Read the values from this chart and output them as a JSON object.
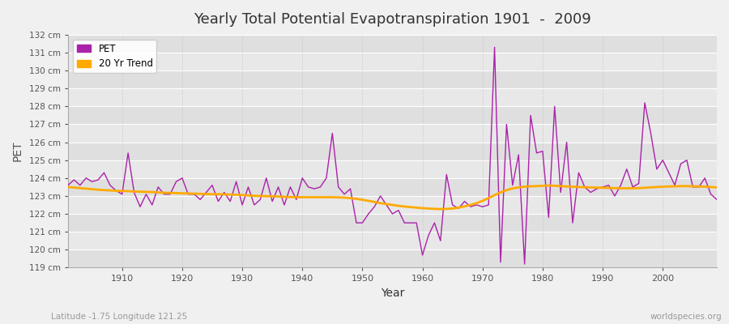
{
  "title": "Yearly Total Potential Evapotranspiration 1901  -  2009",
  "xlabel": "Year",
  "ylabel": "PET",
  "subtitle": "Latitude -1.75 Longitude 121.25",
  "watermark": "worldspecies.org",
  "pet_color": "#aa22aa",
  "trend_color": "#ffaa00",
  "background_color": "#f0f0f0",
  "plot_bg_color": "#e8e8e8",
  "ylim": [
    119,
    132
  ],
  "xlim": [
    1901,
    2009
  ],
  "yticks": [
    119,
    120,
    121,
    122,
    123,
    124,
    125,
    126,
    127,
    128,
    129,
    130,
    131,
    132
  ],
  "xticks": [
    1910,
    1920,
    1930,
    1940,
    1950,
    1960,
    1970,
    1980,
    1990,
    2000
  ],
  "years": [
    1901,
    1902,
    1903,
    1904,
    1905,
    1906,
    1907,
    1908,
    1909,
    1910,
    1911,
    1912,
    1913,
    1914,
    1915,
    1916,
    1917,
    1918,
    1919,
    1920,
    1921,
    1922,
    1923,
    1924,
    1925,
    1926,
    1927,
    1928,
    1929,
    1930,
    1931,
    1932,
    1933,
    1934,
    1935,
    1936,
    1937,
    1938,
    1939,
    1940,
    1941,
    1942,
    1943,
    1944,
    1945,
    1946,
    1947,
    1948,
    1949,
    1950,
    1951,
    1952,
    1953,
    1954,
    1955,
    1956,
    1957,
    1958,
    1959,
    1960,
    1961,
    1962,
    1963,
    1964,
    1965,
    1966,
    1967,
    1968,
    1969,
    1970,
    1971,
    1972,
    1973,
    1974,
    1975,
    1976,
    1977,
    1978,
    1979,
    1980,
    1981,
    1982,
    1983,
    1984,
    1985,
    1986,
    1987,
    1988,
    1989,
    1990,
    1991,
    1992,
    1993,
    1994,
    1995,
    1996,
    1997,
    1998,
    1999,
    2000,
    2001,
    2002,
    2003,
    2004,
    2005,
    2006,
    2007,
    2008,
    2009
  ],
  "pet_values": [
    123.6,
    123.9,
    123.6,
    124.0,
    123.8,
    123.9,
    124.3,
    123.6,
    123.3,
    123.1,
    125.4,
    123.2,
    122.4,
    123.1,
    122.5,
    123.5,
    123.1,
    123.1,
    123.8,
    124.0,
    123.1,
    123.1,
    122.8,
    123.2,
    123.6,
    122.7,
    123.2,
    122.7,
    123.8,
    122.5,
    123.5,
    122.5,
    122.8,
    124.0,
    122.7,
    123.5,
    122.5,
    123.5,
    122.8,
    124.0,
    123.5,
    123.4,
    123.5,
    124.0,
    126.5,
    123.5,
    123.1,
    123.4,
    121.5,
    121.5,
    122.0,
    122.4,
    123.0,
    122.5,
    122.0,
    122.2,
    121.5,
    121.5,
    121.5,
    119.7,
    120.8,
    121.5,
    120.5,
    124.2,
    122.5,
    122.3,
    122.7,
    122.4,
    122.5,
    122.4,
    122.5,
    131.3,
    119.3,
    127.0,
    123.6,
    125.3,
    119.2,
    127.5,
    125.4,
    125.5,
    121.8,
    128.0,
    123.2,
    126.0,
    121.5,
    124.3,
    123.5,
    123.2,
    123.4,
    123.5,
    123.6,
    123.0,
    123.6,
    124.5,
    123.5,
    123.7,
    128.2,
    126.5,
    124.5,
    125.0,
    124.3,
    123.6,
    124.8,
    125.0,
    123.5,
    123.5,
    124.0,
    123.1,
    122.8
  ],
  "trend_values": [
    123.5,
    123.47,
    123.44,
    123.41,
    123.38,
    123.35,
    123.33,
    123.31,
    123.29,
    123.28,
    123.27,
    123.25,
    123.24,
    123.23,
    123.22,
    123.2,
    123.18,
    123.17,
    123.16,
    123.15,
    123.14,
    123.13,
    123.12,
    123.11,
    123.1,
    123.1,
    123.09,
    123.08,
    123.07,
    123.05,
    123.03,
    123.01,
    123.0,
    122.99,
    122.98,
    122.97,
    122.95,
    122.94,
    122.93,
    122.93,
    122.93,
    122.93,
    122.93,
    122.93,
    122.93,
    122.92,
    122.91,
    122.88,
    122.84,
    122.79,
    122.73,
    122.67,
    122.6,
    122.55,
    122.5,
    122.45,
    122.41,
    122.38,
    122.35,
    122.32,
    122.3,
    122.28,
    122.27,
    122.28,
    122.3,
    122.35,
    122.42,
    122.5,
    122.6,
    122.73,
    122.88,
    123.05,
    123.2,
    123.33,
    123.42,
    123.48,
    123.52,
    123.54,
    123.55,
    123.57,
    123.58,
    123.57,
    123.55,
    123.53,
    123.52,
    123.5,
    123.49,
    123.48,
    123.47,
    123.46,
    123.45,
    123.44,
    123.43,
    123.43,
    123.43,
    123.44,
    123.46,
    123.48,
    123.5,
    123.52,
    123.53,
    123.54,
    123.55,
    123.55,
    123.54,
    123.53,
    123.52,
    123.5,
    123.48
  ]
}
